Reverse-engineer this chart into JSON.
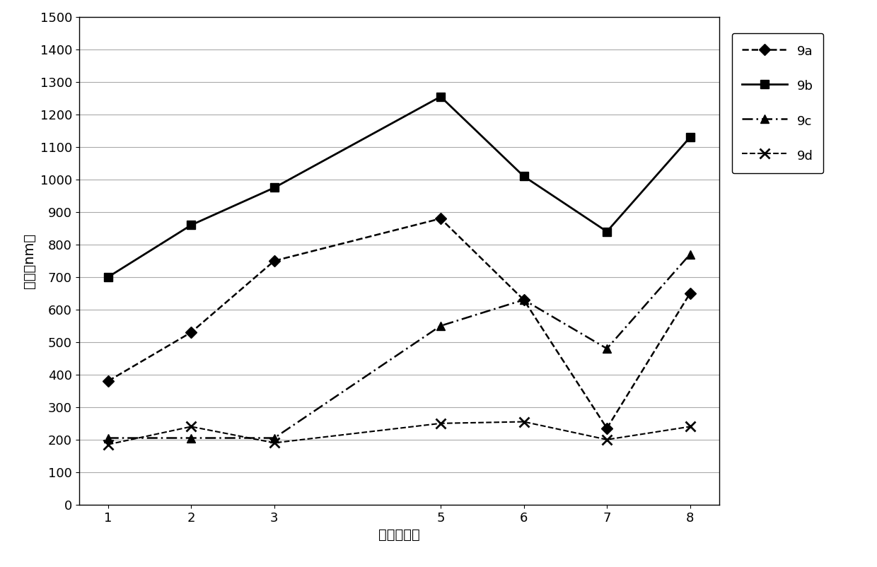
{
  "x": [
    1,
    2,
    3,
    5,
    6,
    7,
    8
  ],
  "series_9a": [
    380,
    530,
    750,
    880,
    630,
    235,
    650
  ],
  "series_9b": [
    700,
    860,
    975,
    1255,
    1010,
    840,
    1130
  ],
  "series_9c": [
    205,
    205,
    205,
    550,
    630,
    480,
    770
  ],
  "series_9d": [
    185,
    240,
    190,
    250,
    255,
    200,
    240
  ],
  "xlabel": "时间（天）",
  "ylabel": "粒径（nm）",
  "ylim": [
    0,
    1500
  ],
  "yticks": [
    0,
    100,
    200,
    300,
    400,
    500,
    600,
    700,
    800,
    900,
    1000,
    1100,
    1200,
    1300,
    1400,
    1500
  ],
  "xticks": [
    1,
    2,
    3,
    5,
    6,
    7,
    8
  ],
  "legend_labels": [
    "9a",
    "9b",
    "9c",
    "9d"
  ],
  "color": "#000000",
  "background_color": "#ffffff",
  "grid_color": "#aaaaaa",
  "label_fontsize": 14,
  "tick_fontsize": 13,
  "legend_fontsize": 13
}
